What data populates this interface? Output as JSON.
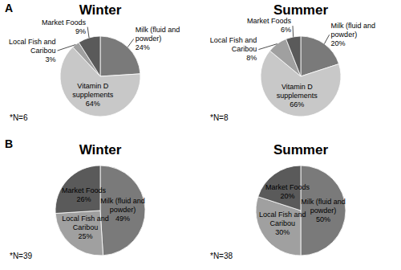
{
  "panel_labels": [
    "A",
    "B"
  ],
  "chart_data": [
    {
      "type": "pie",
      "title": "Winter",
      "categories": [
        "Milk (fluid and powder)",
        "Vitamin D supplements",
        "Local Fish and Caribou",
        "Market Foods"
      ],
      "values": [
        24,
        64,
        3,
        9
      ],
      "value_labels": [
        "24%",
        "64%",
        "3%",
        "9%"
      ],
      "colors": [
        "#7a7a7a",
        "#c8c8c8",
        "#a0a0a0",
        "#5a5a5a"
      ],
      "data_labels": true,
      "annotations": [
        "*N=6"
      ]
    },
    {
      "type": "pie",
      "title": "Summer",
      "categories": [
        "Milk (fluid and powder)",
        "Vitamin D supplements",
        "Local Fish and Caribou",
        "Market Foods"
      ],
      "values": [
        20,
        66,
        8,
        6
      ],
      "value_labels": [
        "20%",
        "66%",
        "8%",
        "6%"
      ],
      "colors": [
        "#7a7a7a",
        "#c8c8c8",
        "#a0a0a0",
        "#5a5a5a"
      ],
      "data_labels": true,
      "annotations": [
        "*N=8"
      ]
    },
    {
      "type": "pie",
      "title": "Winter",
      "categories": [
        "Milk (fluid and powder)",
        "Local Fish and Caribou",
        "Market Foods"
      ],
      "values": [
        49,
        25,
        26
      ],
      "value_labels": [
        "49%",
        "25%",
        "26%"
      ],
      "colors": [
        "#7a7a7a",
        "#a0a0a0",
        "#5a5a5a"
      ],
      "data_labels": true,
      "annotations": [
        "*N=39"
      ]
    },
    {
      "type": "pie",
      "title": "Summer",
      "categories": [
        "Milk (fluid and powder)",
        "Local Fish and Caribou",
        "Market Foods"
      ],
      "values": [
        50,
        30,
        20
      ],
      "value_labels": [
        "50%",
        "30%",
        "20%"
      ],
      "colors": [
        "#7a7a7a",
        "#a0a0a0",
        "#5a5a5a"
      ],
      "data_labels": true,
      "annotations": [
        "*N=38"
      ]
    }
  ]
}
